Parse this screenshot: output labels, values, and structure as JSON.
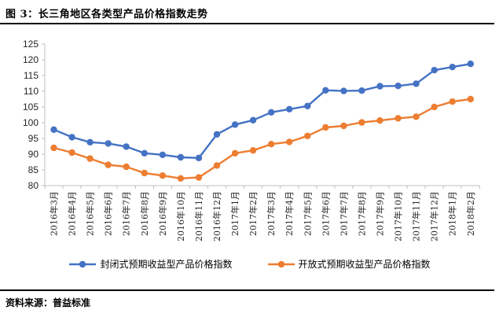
{
  "title": "图 3：长三角地区各类型产品价格指数走势",
  "source_note": "资料来源：普益标准",
  "colors": {
    "series_closed": "#4472C4",
    "series_open": "#ED7D31",
    "axis": "#BFBFBF",
    "tick_label": "#262626",
    "rule": "#000000",
    "background": "#FFFFFF"
  },
  "legend": {
    "items": [
      {
        "label": "封闭式预期收益型产品价格指数",
        "color": "#4472C4"
      },
      {
        "label": "开放式预期收益型产品价格指数",
        "color": "#ED7D31"
      }
    ]
  },
  "chart_data": {
    "type": "line",
    "title": "图 3：长三角地区各类型产品价格指数走势",
    "categories": [
      "2016年3月",
      "2016年4月",
      "2016年5月",
      "2016年6月",
      "2016年7月",
      "2016年8月",
      "2016年9月",
      "2016年10月",
      "2016年11月",
      "2016年12月",
      "2017年1月",
      "2017年2月",
      "2017年3月",
      "2017年4月",
      "2017年5月",
      "2017年6月",
      "2017年7月",
      "2017年8月",
      "2017年9月",
      "2017年10月",
      "2017年11月",
      "2017年12月",
      "2018年1月",
      "2018年2月"
    ],
    "series": [
      {
        "name": "封闭式预期收益型产品价格指数",
        "color": "#4472C4",
        "values": [
          97.8,
          95.4,
          93.8,
          93.4,
          92.4,
          90.3,
          89.8,
          89.0,
          88.8,
          96.3,
          99.4,
          100.8,
          103.3,
          104.3,
          105.3,
          110.3,
          110.1,
          110.2,
          111.6,
          111.7,
          112.4,
          116.7,
          117.7,
          118.7
        ]
      },
      {
        "name": "开放式预期收益型产品价格指数",
        "color": "#ED7D31",
        "values": [
          92.0,
          90.5,
          88.6,
          86.6,
          86.0,
          84.0,
          83.2,
          82.3,
          82.6,
          86.4,
          90.3,
          91.2,
          93.2,
          93.9,
          95.8,
          98.5,
          99.0,
          100.1,
          100.7,
          101.4,
          101.9,
          105.0,
          106.7,
          107.5
        ]
      }
    ],
    "ylim": [
      80,
      125
    ],
    "ytick_step": 5,
    "xlabel": "",
    "ylabel": "",
    "grid": false,
    "legend_position": "bottom",
    "marker": "circle"
  }
}
